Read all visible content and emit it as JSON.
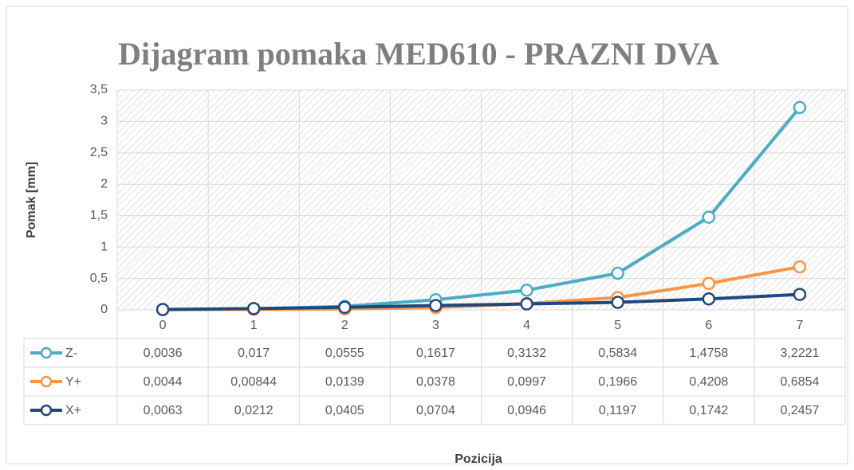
{
  "chart_data": {
    "type": "line",
    "title": "Dijagram pomaka MED610 -  PRAZNI DVA",
    "x_label": "Pozicija",
    "y_label": "Pomak [mm]",
    "categories": [
      "0",
      "1",
      "2",
      "3",
      "4",
      "5",
      "6",
      "7"
    ],
    "series": [
      {
        "name": "Z-",
        "color": "#4bacc6",
        "values": [
          0.0036,
          0.017,
          0.0555,
          0.1617,
          0.3132,
          0.5834,
          1.4758,
          3.2221
        ],
        "value_labels": [
          "0,0036",
          "0,017",
          "0,0555",
          "0,1617",
          "0,3132",
          "0,5834",
          "1,4758",
          "3,2221"
        ]
      },
      {
        "name": "Y+",
        "color": "#f79646",
        "values": [
          0.0044,
          0.00844,
          0.0139,
          0.0378,
          0.0997,
          0.1966,
          0.4208,
          0.6854
        ],
        "value_labels": [
          "0,0044",
          "0,00844",
          "0,0139",
          "0,0378",
          "0,0997",
          "0,1966",
          "0,4208",
          "0,6854"
        ]
      },
      {
        "name": "X+",
        "color": "#1f497d",
        "values": [
          0.0063,
          0.0212,
          0.0405,
          0.0704,
          0.0946,
          0.1197,
          0.1742,
          0.2457
        ],
        "value_labels": [
          "0,0063",
          "0,0212",
          "0,0405",
          "0,0704",
          "0,0946",
          "0,1197",
          "0,1742",
          "0,2457"
        ]
      }
    ],
    "ylim": [
      0,
      3.5
    ],
    "yticks": [
      0,
      {
        "value": 0.5,
        "label": "0,5"
      },
      1,
      {
        "value": 1.5,
        "label": "1,5"
      },
      2,
      {
        "value": 2.5,
        "label": "2,5"
      },
      3,
      {
        "value": 3.5,
        "label": "3,5"
      }
    ],
    "grid": true,
    "data_table": true
  }
}
